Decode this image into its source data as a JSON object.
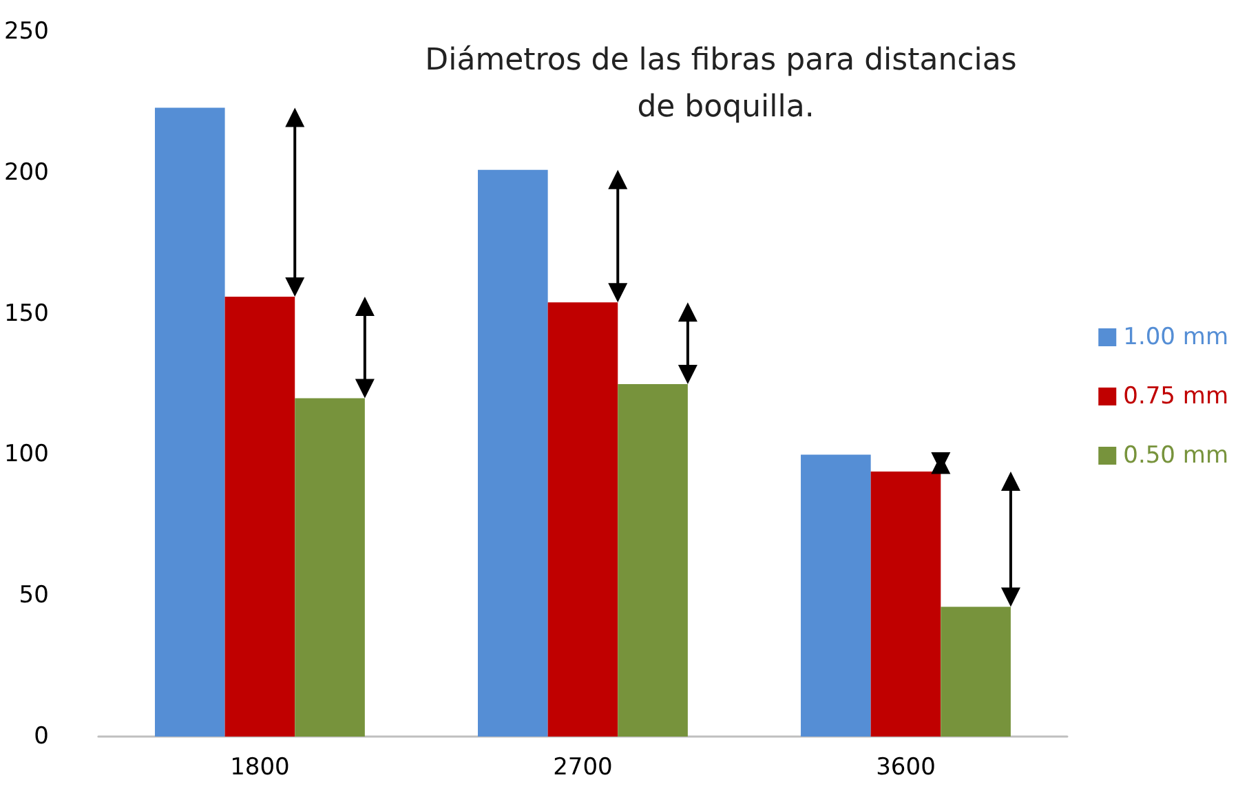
{
  "chart_data": {
    "type": "bar",
    "title": "Diámetros de las fibras para distancias de boquilla.",
    "categories": [
      "1800",
      "2700",
      "3600"
    ],
    "series": [
      {
        "name": "1.00 mm",
        "color": "#558ed5",
        "values": [
          223,
          201,
          100
        ]
      },
      {
        "name": "0.75 mm",
        "color": "#c00000",
        "values": [
          156,
          154,
          94
        ]
      },
      {
        "name": "0.50 mm",
        "color": "#77933c",
        "values": [
          120,
          125,
          46
        ]
      }
    ],
    "ylim": [
      0,
      250
    ],
    "yticks": [
      0,
      50,
      100,
      150,
      200,
      250
    ],
    "grid": false,
    "legend": "right"
  }
}
